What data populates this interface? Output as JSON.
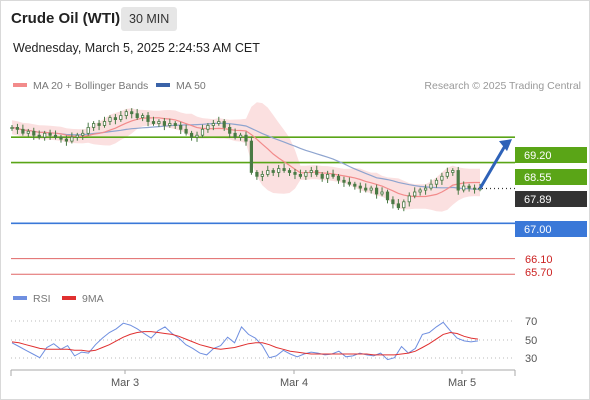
{
  "header": {
    "instrument": "Crude Oil (WTI)",
    "interval": "30 MIN",
    "timestamp": "Wednesday, March 5, 2025 2:24:53 AM CET"
  },
  "legend": {
    "ma20_label": "MA 20 + Bollinger Bands",
    "ma50_label": "MA 50",
    "credit": "Research © 2025 Trading Central"
  },
  "rsi_legend": {
    "rsi_label": "RSI",
    "ma9_label": "9MA"
  },
  "colors": {
    "candle": "#4a7a45",
    "bollinger_fill": "#fbe0e0",
    "ma20": "#f28b8b",
    "ma50": "#8ea4cf",
    "resistance": "#5aa517",
    "current": "#333333",
    "support": "#3a78d8",
    "red_level": "#e06666",
    "arrow": "#2e62b8",
    "rsi": "#6f8fe0",
    "rsi_ma": "#e03030"
  },
  "chart_data": [
    {
      "type": "candlestick",
      "title": "Crude Oil (WTI)",
      "ylim": [
        65.4,
        70.2
      ],
      "x_ticks": [
        "Mar 3",
        "Mar 4",
        "Mar 5"
      ],
      "close_path": [
        69.45,
        69.4,
        69.3,
        69.35,
        69.25,
        69.2,
        69.3,
        69.25,
        69.2,
        69.15,
        69.1,
        69.2,
        69.25,
        69.3,
        69.45,
        69.55,
        69.5,
        69.6,
        69.7,
        69.65,
        69.75,
        69.85,
        69.8,
        69.7,
        69.75,
        69.6,
        69.55,
        69.6,
        69.5,
        69.55,
        69.5,
        69.4,
        69.3,
        69.2,
        69.25,
        69.4,
        69.5,
        69.55,
        69.6,
        69.45,
        69.3,
        69.2,
        69.25,
        69.1,
        68.3,
        68.2,
        68.25,
        68.35,
        68.3,
        68.4,
        68.35,
        68.3,
        68.25,
        68.2,
        68.3,
        68.35,
        68.25,
        68.15,
        68.25,
        68.2,
        68.1,
        68.05,
        68.0,
        67.95,
        67.9,
        67.85,
        67.9,
        67.75,
        67.8,
        67.6,
        67.5,
        67.4,
        67.55,
        67.7,
        67.8,
        67.85,
        67.9,
        68.0,
        68.1,
        68.2,
        68.3,
        68.35,
        67.85,
        67.95,
        67.9,
        67.88,
        67.89
      ],
      "ma20_label": "MA 20 + Bollinger Bands",
      "ma50_label": "MA 50",
      "levels": [
        {
          "value": "69.20",
          "role": "resistance"
        },
        {
          "value": "68.55",
          "role": "resistance"
        },
        {
          "value": "67.89",
          "role": "current"
        },
        {
          "value": "67.00",
          "role": "support"
        },
        {
          "value": "66.10",
          "role": "support"
        },
        {
          "value": "65.70",
          "role": "support"
        }
      ]
    },
    {
      "type": "line",
      "title": "RSI",
      "ylim": [
        20,
        80
      ],
      "y_ticks": [
        "70",
        "50",
        "30"
      ],
      "series": [
        {
          "name": "RSI",
          "values": [
            47,
            43,
            39,
            35,
            31,
            42,
            46,
            40,
            44,
            33,
            37,
            36,
            45,
            52,
            58,
            62,
            68,
            66,
            62,
            57,
            52,
            60,
            64,
            57,
            52,
            45,
            41,
            36,
            34,
            41,
            44,
            53,
            47,
            64,
            56,
            52,
            44,
            31,
            33,
            39,
            35,
            32,
            35,
            37,
            36,
            34,
            35,
            38,
            32,
            33,
            36,
            34,
            33,
            36,
            29,
            31,
            43,
            36,
            41,
            56,
            58,
            64,
            69,
            60,
            52,
            49,
            48,
            49
          ]
        },
        {
          "name": "9MA",
          "values": [
            48,
            47,
            45,
            43,
            41,
            40,
            40,
            40,
            40,
            39,
            39,
            38,
            39,
            42,
            45,
            49,
            53,
            56,
            58,
            59,
            59,
            58,
            57,
            56,
            54,
            51,
            48,
            45,
            43,
            41,
            40,
            41,
            42,
            44,
            46,
            47,
            47,
            45,
            42,
            40,
            38,
            37,
            36,
            35,
            35,
            35,
            35,
            35,
            35,
            35,
            35,
            35,
            34,
            34,
            34,
            34,
            35,
            36,
            38,
            42,
            46,
            51,
            56,
            58,
            57,
            54,
            52,
            51
          ]
        }
      ]
    }
  ],
  "labels": {
    "ma20": "MA 20",
    "ma50": "MA 50",
    "x_mar3": "Mar 3",
    "x_mar4": "Mar 4",
    "x_mar5": "Mar 5",
    "rsi70": "70",
    "rsi50": "50",
    "rsi30": "30",
    "lvl1": "69.20",
    "lvl2": "68.55",
    "lvl3": "67.89",
    "lvl4": "67.00",
    "lvl5": "66.10",
    "lvl6": "65.70"
  }
}
